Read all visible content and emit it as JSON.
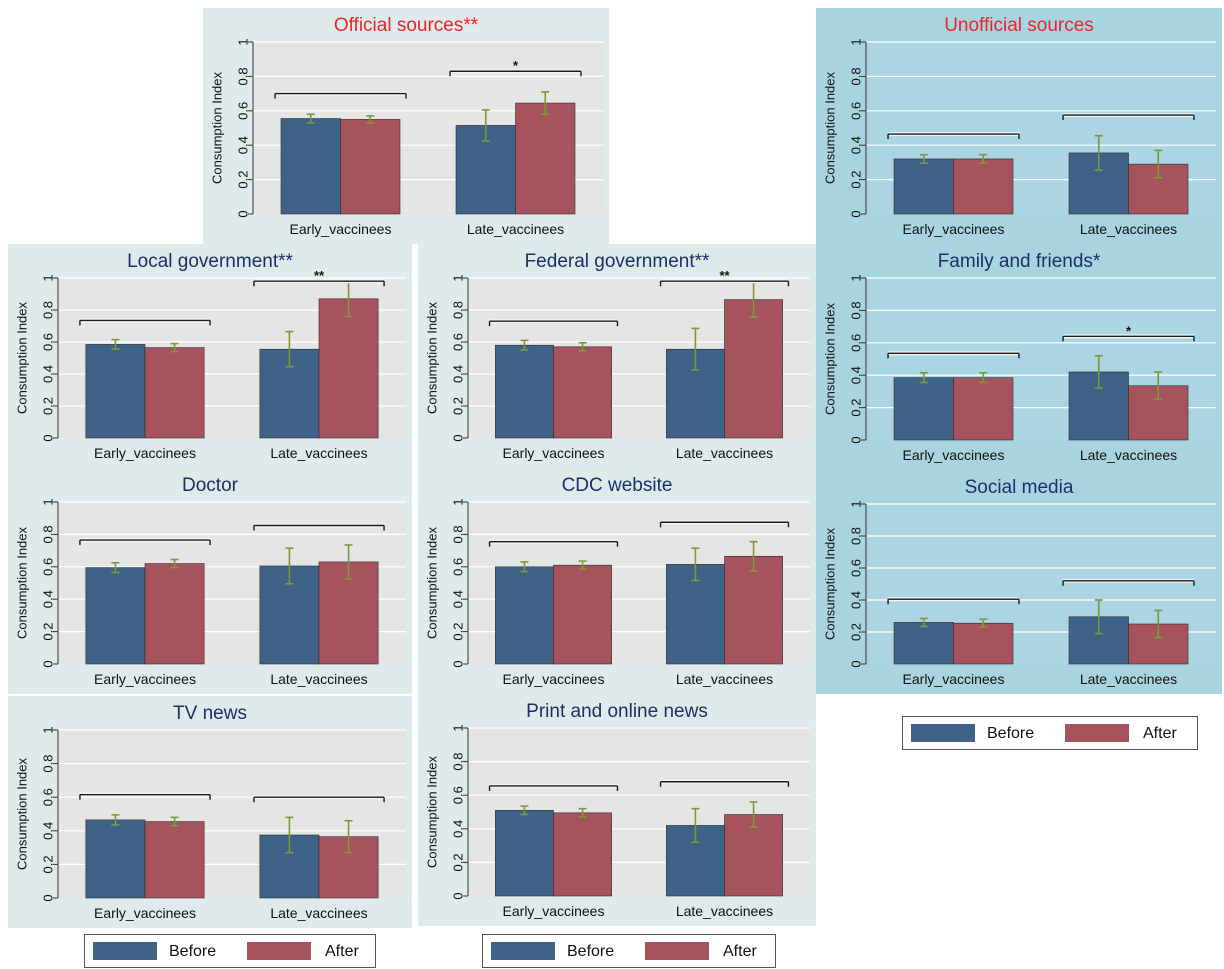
{
  "common": {
    "ylabel": "Consumption Index",
    "yticks": [
      0,
      0.2,
      0.4,
      0.6,
      0.8,
      1
    ],
    "categories": [
      "Early_vaccinees",
      "Late_vaccinees"
    ],
    "series_names": [
      "Before",
      "After"
    ]
  },
  "legend": {
    "before": "Before",
    "after": "After"
  },
  "colors": {
    "before": "#3f6388",
    "after": "#a6535d",
    "error_bar": "#7a9a3a",
    "official_title": "#e8262b",
    "regular_title": "#1c2f6b",
    "bg_official": "#dfeaea",
    "bg_unofficial": "#a8d4e0",
    "plot_gray": "#e5e5e5",
    "plot_blue": "#abd5e3"
  },
  "chart_data": [
    {
      "type": "bar",
      "title": "Official sources**",
      "ylabel": "Consumption Index",
      "ylim": [
        0,
        1
      ],
      "categories": [
        "Early_vaccinees",
        "Late_vaccinees"
      ],
      "series": [
        {
          "name": "Before",
          "values": [
            0.555,
            0.515
          ],
          "err": [
            0.025,
            0.09
          ]
        },
        {
          "name": "After",
          "values": [
            0.55,
            0.645
          ],
          "err": [
            0.02,
            0.065
          ]
        }
      ],
      "sig": [
        "",
        "*"
      ]
    },
    {
      "type": "bar",
      "title": "Unofficial sources",
      "ylabel": "Consumption Index",
      "ylim": [
        0,
        1
      ],
      "categories": [
        "Early_vaccinees",
        "Late_vaccinees"
      ],
      "series": [
        {
          "name": "Before",
          "values": [
            0.32,
            0.355
          ],
          "err": [
            0.025,
            0.1
          ]
        },
        {
          "name": "After",
          "values": [
            0.32,
            0.29
          ],
          "err": [
            0.025,
            0.08
          ]
        }
      ],
      "sig": [
        "",
        ""
      ]
    },
    {
      "type": "bar",
      "title": "Local government**",
      "ylabel": "Consumption Index",
      "ylim": [
        0,
        1
      ],
      "categories": [
        "Early_vaccinees",
        "Late_vaccinees"
      ],
      "series": [
        {
          "name": "Before",
          "values": [
            0.585,
            0.555
          ],
          "err": [
            0.03,
            0.11
          ]
        },
        {
          "name": "After",
          "values": [
            0.565,
            0.87
          ],
          "err": [
            0.025,
            0.11
          ]
        }
      ],
      "sig": [
        "",
        "**"
      ]
    },
    {
      "type": "bar",
      "title": "Federal government**",
      "ylabel": "Consumption Index",
      "ylim": [
        0,
        1
      ],
      "categories": [
        "Early_vaccinees",
        "Late_vaccinees"
      ],
      "series": [
        {
          "name": "Before",
          "values": [
            0.58,
            0.555
          ],
          "err": [
            0.03,
            0.13
          ]
        },
        {
          "name": "After",
          "values": [
            0.57,
            0.865
          ],
          "err": [
            0.025,
            0.11
          ]
        }
      ],
      "sig": [
        "",
        "**"
      ]
    },
    {
      "type": "bar",
      "title": "Family and friends*",
      "ylabel": "Consumption Index",
      "ylim": [
        0,
        1
      ],
      "categories": [
        "Early_vaccinees",
        "Late_vaccinees"
      ],
      "series": [
        {
          "name": "Before",
          "values": [
            0.385,
            0.42
          ],
          "err": [
            0.03,
            0.1
          ]
        },
        {
          "name": "After",
          "values": [
            0.385,
            0.335
          ],
          "err": [
            0.03,
            0.085
          ]
        }
      ],
      "sig": [
        "",
        "*"
      ]
    },
    {
      "type": "bar",
      "title": "Doctor",
      "ylabel": "Consumption Index",
      "ylim": [
        0,
        1
      ],
      "categories": [
        "Early_vaccinees",
        "Late_vaccinees"
      ],
      "series": [
        {
          "name": "Before",
          "values": [
            0.595,
            0.605
          ],
          "err": [
            0.03,
            0.11
          ]
        },
        {
          "name": "After",
          "values": [
            0.62,
            0.63
          ],
          "err": [
            0.025,
            0.105
          ]
        }
      ],
      "sig": [
        "",
        ""
      ]
    },
    {
      "type": "bar",
      "title": "CDC website",
      "ylabel": "Consumption Index",
      "ylim": [
        0,
        1
      ],
      "categories": [
        "Early_vaccinees",
        "Late_vaccinees"
      ],
      "series": [
        {
          "name": "Before",
          "values": [
            0.6,
            0.615
          ],
          "err": [
            0.03,
            0.1
          ]
        },
        {
          "name": "After",
          "values": [
            0.61,
            0.665
          ],
          "err": [
            0.025,
            0.09
          ]
        }
      ],
      "sig": [
        "",
        ""
      ]
    },
    {
      "type": "bar",
      "title": "Social media",
      "ylabel": "Consumption Index",
      "ylim": [
        0,
        1
      ],
      "categories": [
        "Early_vaccinees",
        "Late_vaccinees"
      ],
      "series": [
        {
          "name": "Before",
          "values": [
            0.26,
            0.295
          ],
          "err": [
            0.025,
            0.105
          ]
        },
        {
          "name": "After",
          "values": [
            0.255,
            0.25
          ],
          "err": [
            0.025,
            0.085
          ]
        }
      ],
      "sig": [
        "",
        ""
      ]
    },
    {
      "type": "bar",
      "title": "TV news",
      "ylabel": "Consumption Index",
      "ylim": [
        0,
        1
      ],
      "categories": [
        "Early_vaccinees",
        "Late_vaccinees"
      ],
      "series": [
        {
          "name": "Before",
          "values": [
            0.465,
            0.375
          ],
          "err": [
            0.03,
            0.105
          ]
        },
        {
          "name": "After",
          "values": [
            0.455,
            0.365
          ],
          "err": [
            0.025,
            0.095
          ]
        }
      ],
      "sig": [
        "",
        ""
      ]
    },
    {
      "type": "bar",
      "title": "Print and online news",
      "ylabel": "Consumption Index",
      "ylim": [
        0,
        1
      ],
      "categories": [
        "Early_vaccinees",
        "Late_vaccinees"
      ],
      "series": [
        {
          "name": "Before",
          "values": [
            0.51,
            0.42
          ],
          "err": [
            0.025,
            0.1
          ]
        },
        {
          "name": "After",
          "values": [
            0.495,
            0.485
          ],
          "err": [
            0.025,
            0.075
          ]
        }
      ],
      "sig": [
        "",
        ""
      ]
    }
  ]
}
